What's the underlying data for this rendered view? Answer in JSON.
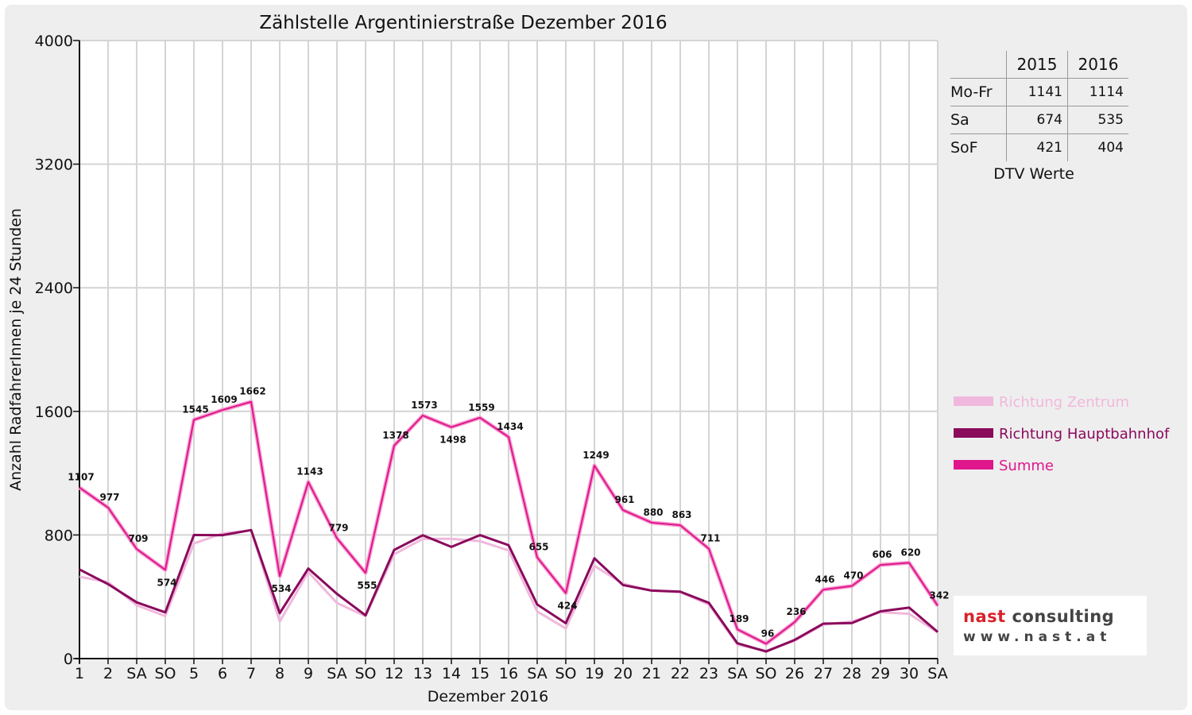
{
  "chart_data": {
    "type": "line",
    "title": "Zählstelle Argentinierstraße Dezember 2016",
    "xlabel": "Dezember 2016",
    "ylabel": "Anzahl RadfahrerInnen je 24 Stunden",
    "ylim": [
      0,
      4000
    ],
    "yticks": [
      "0",
      "800",
      "1600",
      "2400",
      "3200",
      "4000"
    ],
    "grid": true,
    "legend_position": "right",
    "categories": [
      "1",
      "2",
      "SA",
      "SO",
      "5",
      "6",
      "7",
      "8",
      "9",
      "SA",
      "SO",
      "12",
      "13",
      "14",
      "15",
      "16",
      "SA",
      "SO",
      "19",
      "20",
      "21",
      "22",
      "23",
      "SA",
      "SO",
      "26",
      "27",
      "28",
      "29",
      "30",
      "SA"
    ],
    "highlighted_categories": [
      3,
      7,
      10,
      17,
      24,
      25
    ],
    "highlight_color": "#ff0000",
    "series": [
      {
        "name": "Richtung Zentrum",
        "color": "#f0b8dc",
        "values": [
          530,
          495,
          345,
          275,
          745,
          810,
          830,
          240,
          560,
          360,
          275,
          675,
          775,
          775,
          760,
          700,
          305,
          195,
          600,
          485,
          440,
          430,
          350,
          90,
          50,
          115,
          220,
          240,
          300,
          290,
          170
        ]
      },
      {
        "name": "Richtung Hauptbahnhof",
        "color": "#8a0a5c",
        "values": [
          577,
          482,
          364,
          299,
          800,
          799,
          832,
          294,
          583,
          419,
          280,
          703,
          798,
          723,
          799,
          734,
          350,
          229,
          649,
          476,
          440,
          433,
          361,
          99,
          46,
          121,
          226,
          230,
          306,
          330,
          172
        ]
      },
      {
        "name": "Summe",
        "color": "#e0168c",
        "values": [
          1107,
          977,
          709,
          574,
          1545,
          1609,
          1662,
          534,
          1143,
          779,
          555,
          1378,
          1573,
          1498,
          1559,
          1434,
          655,
          424,
          1249,
          961,
          880,
          863,
          711,
          189,
          96,
          236,
          446,
          470,
          606,
          620,
          342
        ]
      }
    ],
    "data_labels": [
      "1107",
      "977",
      "709",
      "574",
      "1545",
      "1609",
      "1662",
      "534",
      "1143",
      "779",
      "555",
      "1378",
      "1573",
      "1498",
      "1559",
      "1434",
      "655",
      "424",
      "1249",
      "961",
      "880",
      "863",
      "711",
      "189",
      "96",
      "236",
      "446",
      "470",
      "606",
      "620",
      "342"
    ]
  },
  "dtv_table": {
    "headers": [
      "2015",
      "2016"
    ],
    "rows": [
      {
        "label": "Mo-Fr",
        "v2015": "1141",
        "v2016": "1114"
      },
      {
        "label": "Sa",
        "v2015": "674",
        "v2016": "535"
      },
      {
        "label": "SoF",
        "v2015": "421",
        "v2016": "404"
      }
    ],
    "caption": "DTV Werte"
  },
  "logo": {
    "name_part1": "nast",
    "name_part2": " consulting",
    "url": "www.nast.at",
    "accent_color": "#d8222a"
  }
}
